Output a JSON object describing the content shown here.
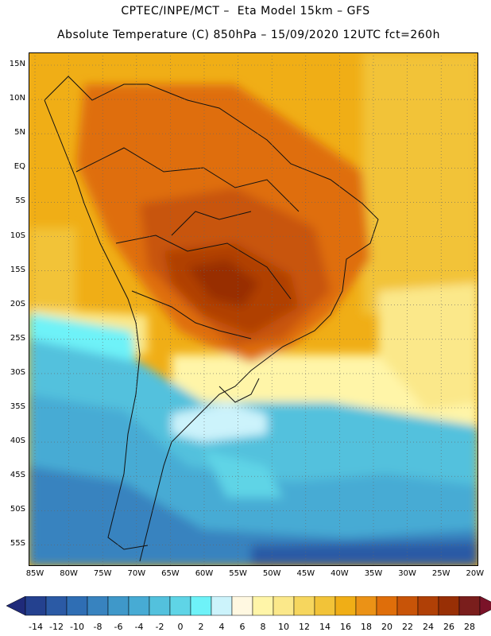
{
  "header": {
    "line1": "CPTEC/INPE/MCT –  Eta Model 15km – GFS",
    "line2": "Absolute Temperature (C) 850hPa – 15/09/2020 12UTC fct=260h"
  },
  "map": {
    "lat_labels": [
      "15N",
      "10N",
      "5N",
      "EQ",
      "5S",
      "10S",
      "15S",
      "20S",
      "25S",
      "30S",
      "35S",
      "40S",
      "45S",
      "50S",
      "55S"
    ],
    "lon_labels": [
      "85W",
      "80W",
      "75W",
      "70W",
      "65W",
      "60W",
      "55W",
      "50W",
      "45W",
      "40W",
      "35W",
      "30W",
      "25W",
      "20W"
    ],
    "grid": "dotted"
  },
  "colorbar": {
    "labels": [
      "-14",
      "-12",
      "-10",
      "-8",
      "-6",
      "-4",
      "-2",
      "0",
      "2",
      "4",
      "6",
      "8",
      "10",
      "12",
      "14",
      "16",
      "18",
      "20",
      "22",
      "24",
      "26",
      "28"
    ],
    "colors": [
      "#24418f",
      "#2b5aa5",
      "#2f6eb4",
      "#3883bf",
      "#3f98c9",
      "#47abd4",
      "#53c1dd",
      "#5fd4e6",
      "#6ef2f8",
      "#ccf3fb",
      "#fff8e1",
      "#fff5a8",
      "#fbe88a",
      "#f6d65e",
      "#f2c338",
      "#f0ae16",
      "#eb9216",
      "#df6e0a",
      "#c85408",
      "#b04006",
      "#982f05",
      "#7a1e1c"
    ],
    "end_low": "#1f2a7a",
    "end_high": "#7a1228"
  }
}
